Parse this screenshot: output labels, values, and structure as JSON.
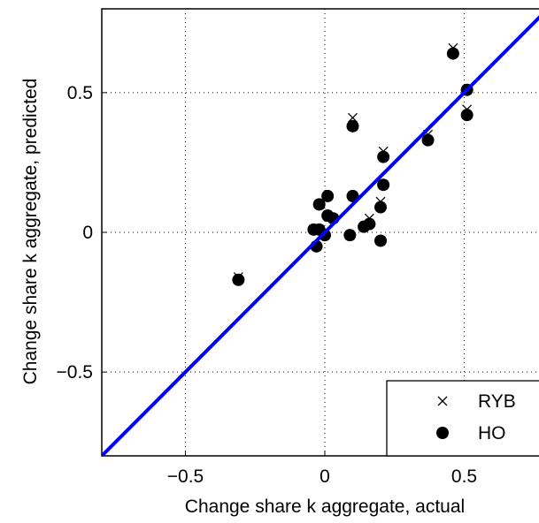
{
  "chart_data": {
    "type": "scatter",
    "xlabel": "Change share k aggregate, actual",
    "ylabel": "Change share k aggregate, predicted",
    "xlim": [
      -0.8,
      0.8
    ],
    "ylim": [
      -0.8,
      0.8
    ],
    "xticks": [
      {
        "value": -0.5,
        "label": "−0.5"
      },
      0,
      0.5
    ],
    "yticks": [
      {
        "value": -0.5,
        "label": "−0.5"
      },
      0,
      0.5
    ],
    "grid": true,
    "legend": "lower right",
    "series": [
      {
        "name": "RYB",
        "marker": "x",
        "color": "#000000",
        "x": [
          0.46,
          0.51,
          0.51,
          0.37,
          0.1,
          0.21,
          0.21,
          0.2,
          0.2,
          0.1,
          0.01,
          -0.02,
          0.01,
          0.03,
          -0.04,
          -0.02,
          0,
          -0.03,
          0.09,
          0.14,
          0.16,
          -0.31
        ],
        "values": [
          0.66,
          0.51,
          0.44,
          0.35,
          0.41,
          0.29,
          0.17,
          0.11,
          -0.03,
          0.13,
          0.13,
          0.1,
          0.06,
          0.05,
          0.01,
          0.01,
          -0.01,
          -0.05,
          -0.01,
          0.02,
          0.05,
          -0.16
        ]
      },
      {
        "name": "HO",
        "marker": "o",
        "color": "#000000",
        "x": [
          0.46,
          0.51,
          0.51,
          0.37,
          0.1,
          0.21,
          0.21,
          0.2,
          0.2,
          0.1,
          0.01,
          -0.02,
          0.01,
          0.03,
          -0.04,
          -0.02,
          0,
          -0.03,
          0.09,
          0.14,
          0.16,
          -0.31
        ],
        "values": [
          0.64,
          0.51,
          0.42,
          0.33,
          0.38,
          0.27,
          0.17,
          0.09,
          -0.03,
          0.13,
          0.13,
          0.1,
          0.06,
          0.05,
          0.01,
          0.01,
          -0.01,
          -0.05,
          -0.01,
          0.02,
          0.03,
          -0.17
        ]
      },
      {
        "marker": "line",
        "color": "#0000ff",
        "x": [
          -0.8,
          0.8
        ],
        "values": [
          -0.8,
          0.8
        ]
      }
    ]
  }
}
